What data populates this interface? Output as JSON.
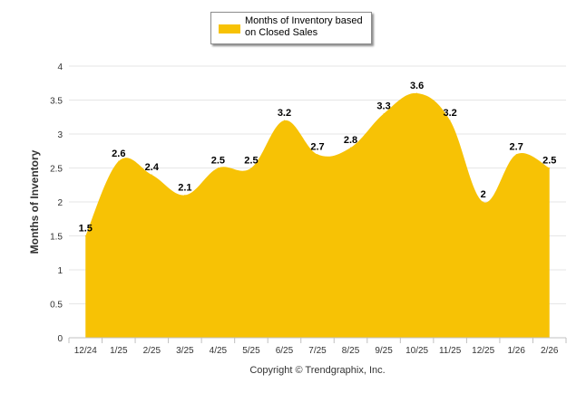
{
  "chart_data": {
    "type": "area",
    "title": "",
    "xlabel": "",
    "ylabel": "Months of Inventory",
    "ylim": [
      0,
      4
    ],
    "yticks": [
      "0",
      "0.5",
      "1",
      "1.5",
      "2",
      "2.5",
      "3",
      "3.5",
      "4"
    ],
    "ytick_values": [
      0,
      0.5,
      1,
      1.5,
      2,
      2.5,
      3,
      3.5,
      4
    ],
    "categories": [
      "12/24",
      "1/25",
      "2/25",
      "3/25",
      "4/25",
      "5/25",
      "6/25",
      "7/25",
      "8/25",
      "9/25",
      "10/25",
      "11/25",
      "12/25",
      "1/26",
      "2/26"
    ],
    "series": [
      {
        "name": "Months of Inventory based on Closed Sales",
        "values": [
          1.5,
          2.6,
          2.4,
          2.1,
          2.5,
          2.5,
          3.2,
          2.7,
          2.8,
          3.3,
          3.6,
          3.2,
          2,
          2.7,
          2.5
        ],
        "labels": [
          "1.5",
          "2.6",
          "2.4",
          "2.1",
          "2.5",
          "2.5",
          "3.2",
          "2.7",
          "2.8",
          "3.3",
          "3.6",
          "3.2",
          "2",
          "2.7",
          "2.5"
        ],
        "color": "#f7c205"
      }
    ],
    "grid": true,
    "legend": {
      "position": "top-center",
      "label_line1": "Months of Inventory based",
      "label_line2": "on Closed Sales"
    }
  },
  "credit": "Copyright © Trendgraphix, Inc."
}
